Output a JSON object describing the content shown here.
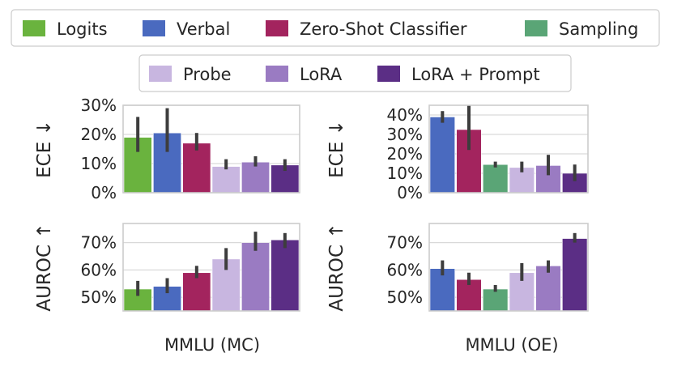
{
  "legend": {
    "rows": [
      [
        {
          "label": "Logits",
          "color": "#6ab33e"
        },
        {
          "label": "Verbal",
          "color": "#4a6abf"
        },
        {
          "label": "Zero-Shot Classifier",
          "color": "#a3245e"
        },
        {
          "label": "Sampling",
          "color": "#5aa576"
        }
      ],
      [
        {
          "label": "Probe",
          "color": "#c8b6e0"
        },
        {
          "label": "LoRA",
          "color": "#9a7bc2"
        },
        {
          "label": "LoRA + Prompt",
          "color": "#5b2e85"
        }
      ]
    ]
  },
  "columns": [
    "MMLU (MC)",
    "MMLU (OE)"
  ],
  "chart_data": [
    {
      "type": "bar",
      "row": 0,
      "col": 0,
      "ylabel": "ECE ↓",
      "ylim": [
        0,
        30
      ],
      "yticks": [
        0,
        10,
        20,
        30
      ],
      "yticklabels": [
        "0%",
        "10%",
        "20%",
        "30%"
      ],
      "grid": true,
      "bars": [
        {
          "series": "Logits",
          "value": 19,
          "err": [
            14,
            26
          ],
          "color": "#6ab33e"
        },
        {
          "series": "Verbal",
          "value": 20.5,
          "err": [
            14,
            29
          ],
          "color": "#4a6abf"
        },
        {
          "series": "Zero-Shot Classifier",
          "value": 17,
          "err": [
            14.5,
            20.5
          ],
          "color": "#a3245e"
        },
        {
          "series": "Probe",
          "value": 9,
          "err": [
            8,
            11.5
          ],
          "color": "#c8b6e0"
        },
        {
          "series": "LoRA",
          "value": 10.5,
          "err": [
            9,
            12.5
          ],
          "color": "#9a7bc2"
        },
        {
          "series": "LoRA + Prompt",
          "value": 9.5,
          "err": [
            7.5,
            11.5
          ],
          "color": "#5b2e85"
        }
      ]
    },
    {
      "type": "bar",
      "row": 0,
      "col": 1,
      "ylabel": "ECE ↓",
      "ylim": [
        0,
        45
      ],
      "yticks": [
        0,
        10,
        20,
        30,
        40
      ],
      "yticklabels": [
        "0%",
        "10%",
        "20%",
        "30%",
        "40%"
      ],
      "grid": true,
      "bars": [
        {
          "series": "Verbal",
          "value": 39,
          "err": [
            36,
            42
          ],
          "color": "#4a6abf"
        },
        {
          "series": "Zero-Shot Classifier",
          "value": 32.5,
          "err": [
            22,
            45
          ],
          "color": "#a3245e"
        },
        {
          "series": "Sampling",
          "value": 14.5,
          "err": [
            13,
            16
          ],
          "color": "#5aa576"
        },
        {
          "series": "Probe",
          "value": 13,
          "err": [
            10.5,
            16
          ],
          "color": "#c8b6e0"
        },
        {
          "series": "LoRA",
          "value": 14,
          "err": [
            9,
            19.5
          ],
          "color": "#9a7bc2"
        },
        {
          "series": "LoRA + Prompt",
          "value": 10,
          "err": [
            6,
            14.5
          ],
          "color": "#5b2e85"
        }
      ]
    },
    {
      "type": "bar",
      "row": 1,
      "col": 0,
      "ylabel": "AUROC ↑",
      "ylim": [
        45,
        77
      ],
      "yticks": [
        50,
        60,
        70
      ],
      "yticklabels": [
        "50%",
        "60%",
        "70%"
      ],
      "grid": true,
      "bars": [
        {
          "series": "Logits",
          "value": 53,
          "err": [
            50.5,
            56
          ],
          "color": "#6ab33e"
        },
        {
          "series": "Verbal",
          "value": 54,
          "err": [
            51.5,
            57
          ],
          "color": "#4a6abf"
        },
        {
          "series": "Zero-Shot Classifier",
          "value": 59,
          "err": [
            57,
            61.5
          ],
          "color": "#a3245e"
        },
        {
          "series": "Probe",
          "value": 64,
          "err": [
            60,
            68
          ],
          "color": "#c8b6e0"
        },
        {
          "series": "LoRA",
          "value": 70,
          "err": [
            67,
            74
          ],
          "color": "#9a7bc2"
        },
        {
          "series": "LoRA + Prompt",
          "value": 71,
          "err": [
            68,
            73.5
          ],
          "color": "#5b2e85"
        }
      ]
    },
    {
      "type": "bar",
      "row": 1,
      "col": 1,
      "ylabel": "AUROC ↑",
      "ylim": [
        45,
        77
      ],
      "yticks": [
        50,
        60,
        70
      ],
      "yticklabels": [
        "50%",
        "60%",
        "70%"
      ],
      "grid": true,
      "bars": [
        {
          "series": "Verbal",
          "value": 60.5,
          "err": [
            58,
            63.5
          ],
          "color": "#4a6abf"
        },
        {
          "series": "Zero-Shot Classifier",
          "value": 56.5,
          "err": [
            54.5,
            59
          ],
          "color": "#a3245e"
        },
        {
          "series": "Sampling",
          "value": 53,
          "err": [
            52,
            54.5
          ],
          "color": "#5aa576"
        },
        {
          "series": "Probe",
          "value": 59,
          "err": [
            56,
            62.5
          ],
          "color": "#c8b6e0"
        },
        {
          "series": "LoRA",
          "value": 61.5,
          "err": [
            59,
            63.5
          ],
          "color": "#9a7bc2"
        },
        {
          "series": "LoRA + Prompt",
          "value": 71.5,
          "err": [
            70,
            73.5
          ],
          "color": "#5b2e85"
        }
      ]
    }
  ]
}
